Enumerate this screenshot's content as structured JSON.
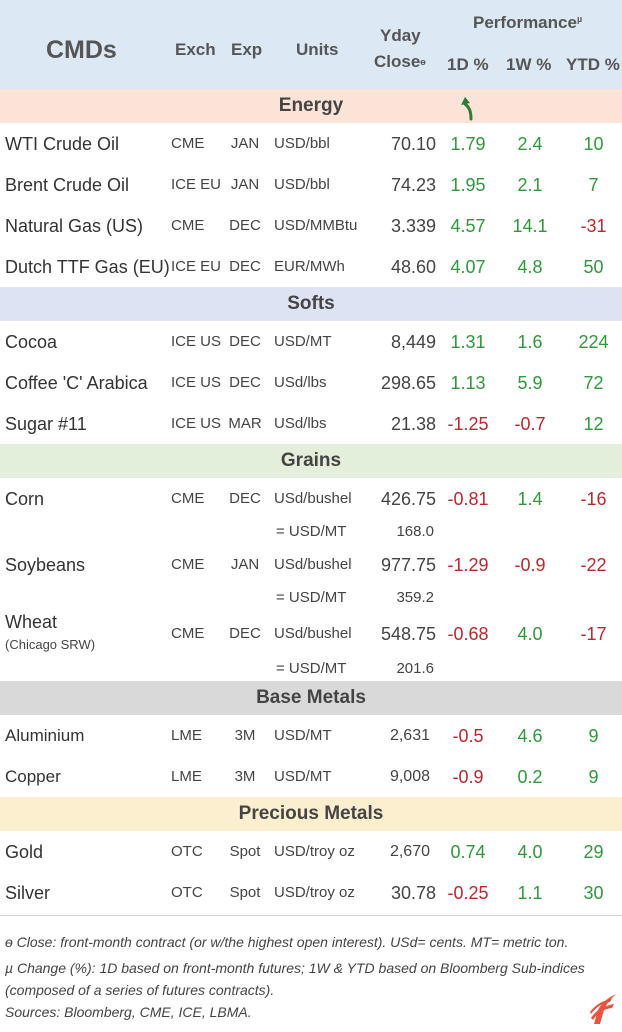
{
  "header": {
    "title": "CMDs",
    "exch": "Exch",
    "exp": "Exp",
    "units": "Units",
    "yday": "Yday",
    "close": "Close",
    "close_mark": "ө",
    "performance": "Performance",
    "performance_mark": "µ",
    "d1": "1D %",
    "w1": "1W %",
    "ytd": "YTD %"
  },
  "sections": {
    "energy": "Energy",
    "softs": "Softs",
    "grains": "Grains",
    "base": "Base Metals",
    "precious": "Precious Metals"
  },
  "energy": [
    {
      "name": "WTI Crude Oil",
      "exch": "CME",
      "exp": "JAN",
      "units": "USD/bbl",
      "close": "70.10",
      "d1": "1.79",
      "w1": "2.4",
      "ytd": "10"
    },
    {
      "name": "Brent Crude Oil",
      "exch": "ICE EU",
      "exp": "JAN",
      "units": "USD/bbl",
      "close": "74.23",
      "d1": "1.95",
      "w1": "2.1",
      "ytd": "7"
    },
    {
      "name": "Natural Gas (US)",
      "exch": "CME",
      "exp": "DEC",
      "units": "USD/MMBtu",
      "close": "3.339",
      "d1": "4.57",
      "w1": "14.1",
      "ytd": "-31"
    },
    {
      "name": "Dutch TTF Gas (EU)",
      "exch": "ICE EU",
      "exp": "DEC",
      "units": "EUR/MWh",
      "close": "48.60",
      "d1": "4.07",
      "w1": "4.8",
      "ytd": "50"
    }
  ],
  "softs": [
    {
      "name": "Cocoa",
      "exch": "ICE US",
      "exp": "DEC",
      "units": "USD/MT",
      "close": "8,449",
      "d1": "1.31",
      "w1": "1.6",
      "ytd": "224"
    },
    {
      "name": "Coffee 'C' Arabica",
      "exch": "ICE US",
      "exp": "DEC",
      "units": "USd/lbs",
      "close": "298.65",
      "d1": "1.13",
      "w1": "5.9",
      "ytd": "72"
    },
    {
      "name": "Sugar #11",
      "exch": "ICE US",
      "exp": "MAR",
      "units": "USd/lbs",
      "close": "21.38",
      "d1": "-1.25",
      "w1": "-0.7",
      "ytd": "12"
    }
  ],
  "grains": [
    {
      "name": "Corn",
      "exch": "CME",
      "exp": "DEC",
      "units": "USd/bushel",
      "close": "426.75",
      "d1": "-0.81",
      "w1": "1.4",
      "ytd": "-16",
      "sub_units": "= USD/MT",
      "sub_close": "168.0"
    },
    {
      "name": "Soybeans",
      "exch": "CME",
      "exp": "JAN",
      "units": "USd/bushel",
      "close": "977.75",
      "d1": "-1.29",
      "w1": "-0.9",
      "ytd": "-22",
      "sub_units": "= USD/MT",
      "sub_close": "359.2"
    },
    {
      "name": "Wheat",
      "name_sub": "(Chicago SRW)",
      "exch": "CME",
      "exp": "DEC",
      "units": "USd/bushel",
      "close": "548.75",
      "d1": "-0.68",
      "w1": "4.0",
      "ytd": "-17",
      "sub_units": "= USD/MT",
      "sub_close": "201.6"
    }
  ],
  "base": [
    {
      "name": "Aluminium",
      "exch": "LME",
      "exp": "3M",
      "units": "USD/MT",
      "close": "2,631",
      "d1": "-0.5",
      "w1": "4.6",
      "ytd": "9"
    },
    {
      "name": "Copper",
      "exch": "LME",
      "exp": "3M",
      "units": "USD/MT",
      "close": "9,008",
      "d1": "-0.9",
      "w1": "0.2",
      "ytd": "9"
    }
  ],
  "precious": [
    {
      "name": "Gold",
      "exch": "OTC",
      "exp": "Spot",
      "units": "USD/troy oz",
      "close": "2,670",
      "d1": "0.74",
      "w1": "4.0",
      "ytd": "29"
    },
    {
      "name": "Silver",
      "exch": "OTC",
      "exp": "Spot",
      "units": "USD/troy oz",
      "close": "30.78",
      "d1": "-0.25",
      "w1": "1.1",
      "ytd": "30"
    }
  ],
  "footnotes": {
    "line1": "ө Close: front-month contract (or w/the highest open interest). USd= cents. MT= metric ton.",
    "line2": "µ Change (%): 1D based on front-month futures; 1W & YTD based on Bloomberg Sub-indices",
    "line3": "(composed of a series of futures contracts).",
    "line4": "Sources: Bloomberg, CME, ICE, LBMA."
  },
  "icons": {
    "arrow": "trend-arrow-icon",
    "logo": "brand-logo-icon"
  },
  "colors": {
    "positive": "#2e9a3a",
    "negative": "#c0262c",
    "header_bg": "#dce8f4",
    "energy_bg": "#fbe3d8",
    "softs_bg": "#dde3f2",
    "grains_bg": "#e3efda",
    "base_bg": "#d9d9d9",
    "precious_bg": "#fcefcf",
    "logo": "#e8553f"
  }
}
